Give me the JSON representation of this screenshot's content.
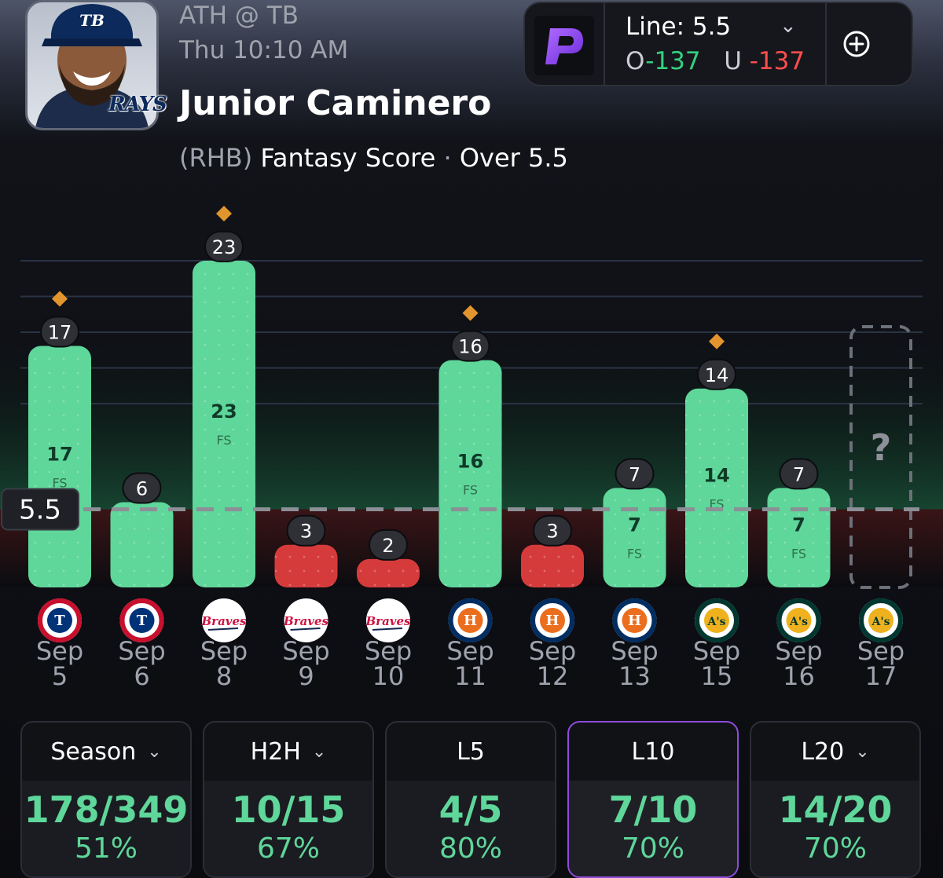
{
  "header": {
    "matchup": "ATH @ TB",
    "game_time": "Thu 10:10 AM",
    "player_name": "Junior Caminero",
    "team_logo_text": "RAYS",
    "handedness": "(RHB)",
    "stat": "Fantasy Score",
    "separator": "·",
    "pick": "Over 5.5"
  },
  "line_box": {
    "line_label": "Line: 5.5",
    "over_prefix": "O",
    "over_odds": "-137",
    "under_prefix": "U",
    "under_odds": "-137",
    "book_icon": "prizepicks-logo-icon",
    "add_icon": "plus-circle-icon",
    "dropdown_icon": "chevron-down-icon"
  },
  "chart_data": {
    "type": "bar",
    "line": 5.5,
    "line_label": "5.5",
    "inbar_unit": "FS",
    "categories": [
      {
        "month": "Sep",
        "day": "5",
        "opp": "TEX"
      },
      {
        "month": "Sep",
        "day": "6",
        "opp": "TEX"
      },
      {
        "month": "Sep",
        "day": "8",
        "opp": "ATL"
      },
      {
        "month": "Sep",
        "day": "9",
        "opp": "ATL"
      },
      {
        "month": "Sep",
        "day": "10",
        "opp": "ATL"
      },
      {
        "month": "Sep",
        "day": "11",
        "opp": "HOU"
      },
      {
        "month": "Sep",
        "day": "12",
        "opp": "HOU"
      },
      {
        "month": "Sep",
        "day": "13",
        "opp": "HOU"
      },
      {
        "month": "Sep",
        "day": "15",
        "opp": "ATH"
      },
      {
        "month": "Sep",
        "day": "16",
        "opp": "ATH"
      },
      {
        "month": "Sep",
        "day": "17",
        "opp": "ATH"
      }
    ],
    "values": [
      17,
      6,
      23,
      3,
      2,
      16,
      3,
      7,
      14,
      7,
      null
    ],
    "inbar_labels": [
      true,
      false,
      true,
      false,
      false,
      true,
      false,
      true,
      true,
      true,
      false
    ],
    "diamond_markers": [
      true,
      false,
      true,
      false,
      false,
      true,
      false,
      false,
      true,
      false,
      false
    ],
    "pending_label": "?",
    "ylim": [
      0,
      23
    ],
    "grid": true,
    "colors": {
      "over": "#5fd69a",
      "under": "#d63b3b",
      "line": "#8c8f96",
      "diamond": "#e3952d"
    }
  },
  "team_logos": {
    "TEX": {
      "text": "T",
      "ring": "#c8102e",
      "fill": "#003278",
      "band": "TEXAS RANGERS"
    },
    "ATL": {
      "text": "Braves",
      "color": "#ce1141"
    },
    "HOU": {
      "text": "H",
      "ring": "#002d62",
      "fill": "#eb6e1f",
      "band": "HOUSTON ASTROS"
    },
    "ATH": {
      "text": "A's",
      "ring": "#003831",
      "fill": "#efb21e",
      "band": "OAKLAND ATHLETICS"
    }
  },
  "tabs": [
    {
      "label": "Season",
      "dropdown": true,
      "fraction": "178/349",
      "percent": "51%",
      "selected": false
    },
    {
      "label": "H2H",
      "dropdown": true,
      "fraction": "10/15",
      "percent": "67%",
      "selected": false
    },
    {
      "label": "L5",
      "dropdown": false,
      "fraction": "4/5",
      "percent": "80%",
      "selected": false
    },
    {
      "label": "L10",
      "dropdown": false,
      "fraction": "7/10",
      "percent": "70%",
      "selected": true
    },
    {
      "label": "L20",
      "dropdown": true,
      "fraction": "14/20",
      "percent": "70%",
      "selected": false
    }
  ],
  "chevron_glyph": "⌄"
}
